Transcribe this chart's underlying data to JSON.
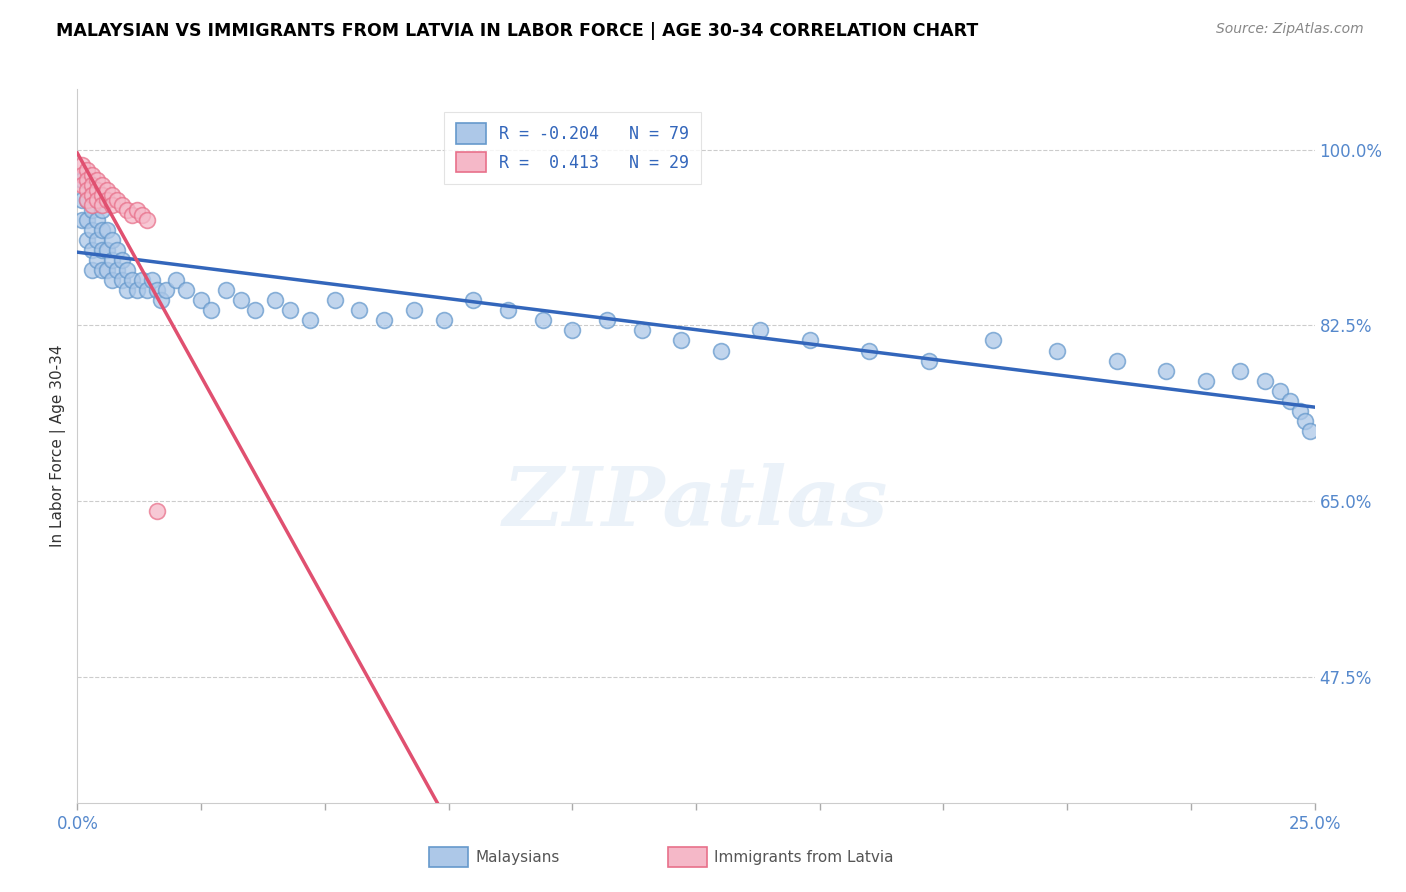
{
  "title": "MALAYSIAN VS IMMIGRANTS FROM LATVIA IN LABOR FORCE | AGE 30-34 CORRELATION CHART",
  "source": "Source: ZipAtlas.com",
  "ylabel": "In Labor Force | Age 30-34",
  "ylabel_ticks": [
    "100.0%",
    "82.5%",
    "65.0%",
    "47.5%"
  ],
  "y_tick_vals": [
    1.0,
    0.825,
    0.65,
    0.475
  ],
  "x_min": 0.0,
  "x_max": 0.25,
  "y_min": 0.35,
  "y_max": 1.06,
  "malaysian_R": -0.204,
  "malaysian_N": 79,
  "latvia_R": 0.413,
  "latvia_N": 29,
  "blue_color": "#adc8e8",
  "blue_edge_color": "#6699cc",
  "blue_line_color": "#3366bb",
  "pink_color": "#f5b8c8",
  "pink_edge_color": "#e8708a",
  "pink_line_color": "#e05070",
  "legend_text_blue": "#3366bb",
  "legend_text_pink": "#e05070",
  "axis_label_color": "#5588cc",
  "watermark": "ZIPatlas",
  "blue_x": [
    0.001,
    0.001,
    0.001,
    0.002,
    0.002,
    0.002,
    0.002,
    0.003,
    0.003,
    0.003,
    0.003,
    0.003,
    0.004,
    0.004,
    0.004,
    0.004,
    0.005,
    0.005,
    0.005,
    0.005,
    0.006,
    0.006,
    0.006,
    0.007,
    0.007,
    0.007,
    0.008,
    0.008,
    0.009,
    0.009,
    0.01,
    0.01,
    0.011,
    0.012,
    0.013,
    0.014,
    0.015,
    0.016,
    0.017,
    0.018,
    0.02,
    0.022,
    0.025,
    0.027,
    0.03,
    0.033,
    0.036,
    0.04,
    0.043,
    0.047,
    0.052,
    0.057,
    0.062,
    0.068,
    0.074,
    0.08,
    0.087,
    0.094,
    0.1,
    0.107,
    0.114,
    0.122,
    0.13,
    0.138,
    0.148,
    0.16,
    0.172,
    0.185,
    0.198,
    0.21,
    0.22,
    0.228,
    0.235,
    0.24,
    0.243,
    0.245,
    0.247,
    0.248,
    0.249
  ],
  "blue_y": [
    0.97,
    0.95,
    0.93,
    0.97,
    0.95,
    0.93,
    0.91,
    0.96,
    0.94,
    0.92,
    0.9,
    0.88,
    0.95,
    0.93,
    0.91,
    0.89,
    0.94,
    0.92,
    0.9,
    0.88,
    0.92,
    0.9,
    0.88,
    0.91,
    0.89,
    0.87,
    0.9,
    0.88,
    0.89,
    0.87,
    0.88,
    0.86,
    0.87,
    0.86,
    0.87,
    0.86,
    0.87,
    0.86,
    0.85,
    0.86,
    0.87,
    0.86,
    0.85,
    0.84,
    0.86,
    0.85,
    0.84,
    0.85,
    0.84,
    0.83,
    0.85,
    0.84,
    0.83,
    0.84,
    0.83,
    0.85,
    0.84,
    0.83,
    0.82,
    0.83,
    0.82,
    0.81,
    0.8,
    0.82,
    0.81,
    0.8,
    0.79,
    0.81,
    0.8,
    0.79,
    0.78,
    0.77,
    0.78,
    0.77,
    0.76,
    0.75,
    0.74,
    0.73,
    0.72
  ],
  "pink_x": [
    0.001,
    0.001,
    0.001,
    0.002,
    0.002,
    0.002,
    0.002,
    0.003,
    0.003,
    0.003,
    0.003,
    0.004,
    0.004,
    0.004,
    0.005,
    0.005,
    0.005,
    0.006,
    0.006,
    0.007,
    0.007,
    0.008,
    0.009,
    0.01,
    0.011,
    0.012,
    0.013,
    0.014,
    0.016
  ],
  "pink_y": [
    0.985,
    0.975,
    0.965,
    0.98,
    0.97,
    0.96,
    0.95,
    0.975,
    0.965,
    0.955,
    0.945,
    0.97,
    0.96,
    0.95,
    0.965,
    0.955,
    0.945,
    0.96,
    0.95,
    0.955,
    0.945,
    0.95,
    0.945,
    0.94,
    0.935,
    0.94,
    0.935,
    0.93,
    0.64
  ]
}
